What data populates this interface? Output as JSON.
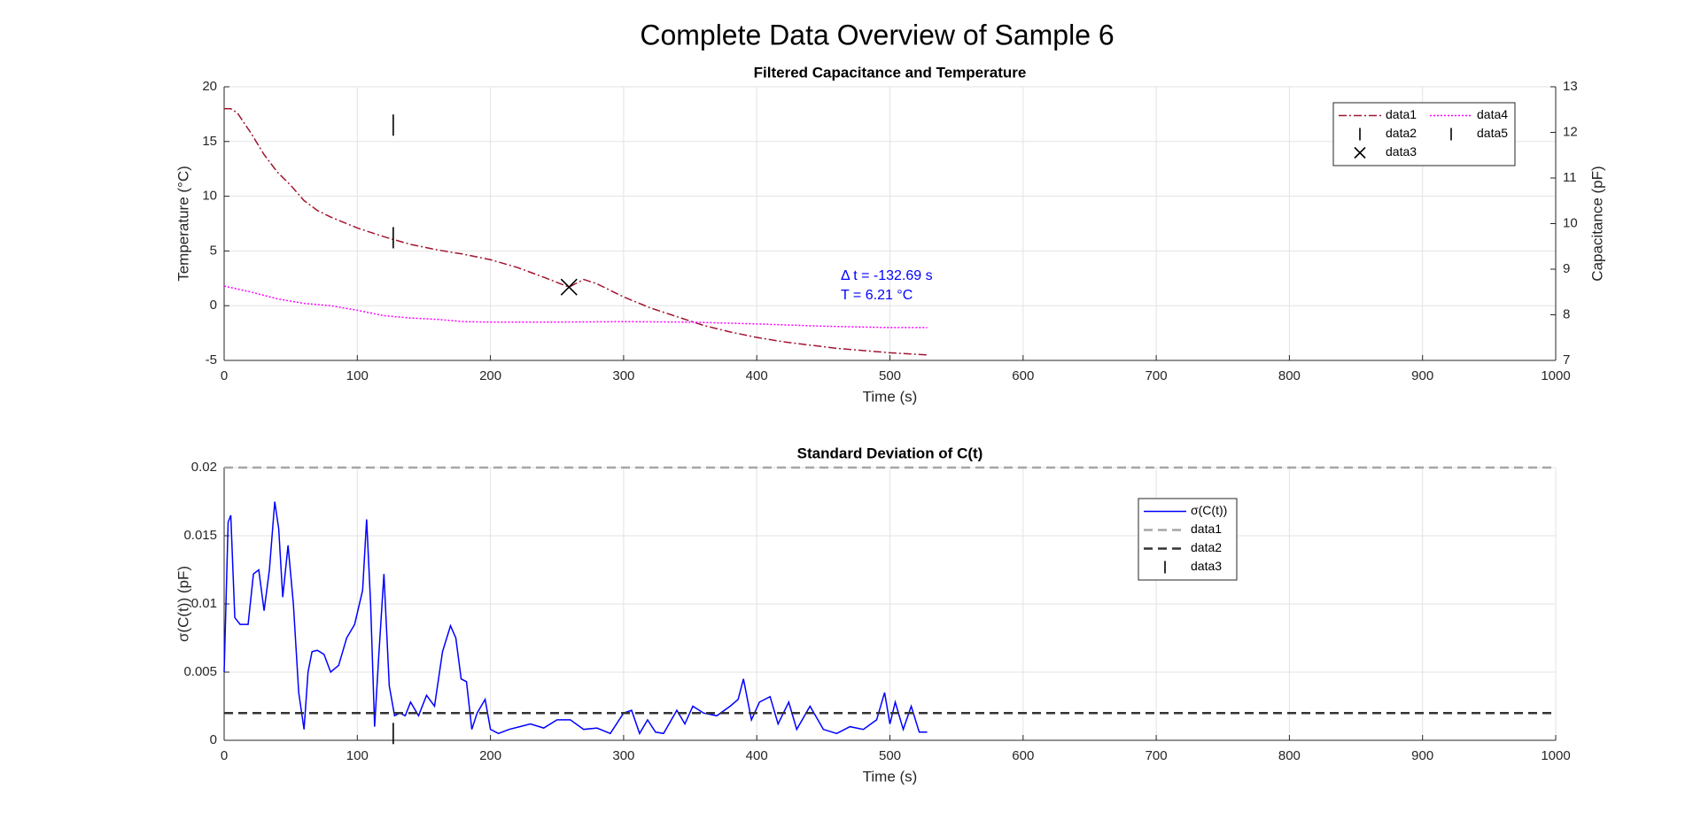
{
  "title": "Complete Data Overview of Sample 6",
  "chart_data": [
    {
      "type": "line",
      "title": "Filtered Capacitance and Temperature",
      "xlabel": "Time (s)",
      "ylabel": "Temperature (°C)",
      "y2label": "Capacitance (pF)",
      "xlim": [
        0,
        1000
      ],
      "xticks": [
        0,
        100,
        200,
        300,
        400,
        500,
        600,
        700,
        800,
        900,
        1000
      ],
      "ylim": [
        -5,
        20
      ],
      "yticks": [
        -5,
        0,
        5,
        10,
        15,
        20
      ],
      "y2lim": [
        7,
        13
      ],
      "y2ticks": [
        7,
        8,
        9,
        10,
        11,
        12,
        13
      ],
      "grid": true,
      "legend": "northeast",
      "annotations": [
        "Δ t = -132.69 s",
        "T = 6.21 °C"
      ],
      "annotation_color": "#0000ff",
      "series": [
        {
          "name": "data1",
          "color": "#a2142f",
          "style": "dashdot",
          "x": [
            0,
            5,
            10,
            20,
            30,
            40,
            50,
            60,
            70,
            80,
            100,
            120,
            140,
            160,
            180,
            200,
            220,
            240,
            259,
            270,
            280,
            300,
            320,
            340,
            360,
            380,
            400,
            420,
            440,
            460,
            480,
            500,
            528
          ],
          "values": [
            18,
            18,
            17.6,
            15.8,
            13.8,
            12.2,
            11,
            9.6,
            8.7,
            8.1,
            7.1,
            6.3,
            5.6,
            5.1,
            4.7,
            4.2,
            3.5,
            2.6,
            1.7,
            2.4,
            2.0,
            0.8,
            -0.2,
            -1.0,
            -1.8,
            -2.4,
            -2.9,
            -3.3,
            -3.6,
            -3.9,
            -4.1,
            -4.3,
            -4.5
          ]
        },
        {
          "name": "data2",
          "color": "#000000",
          "style": "none",
          "marker": "|",
          "x": [
            127
          ],
          "values": [
            6.21
          ]
        },
        {
          "name": "data3",
          "color": "#000000",
          "style": "none",
          "marker": "x",
          "x": [
            259
          ],
          "values": [
            1.7
          ]
        },
        {
          "name": "data4",
          "color": "#ff00ff",
          "style": "dotted",
          "axis": "y2",
          "x": [
            0,
            20,
            40,
            60,
            80,
            100,
            120,
            140,
            160,
            180,
            200,
            250,
            300,
            350,
            400,
            450,
            500,
            528
          ],
          "values": [
            8.63,
            8.5,
            8.35,
            8.25,
            8.2,
            8.1,
            7.98,
            7.93,
            7.9,
            7.85,
            7.84,
            7.84,
            7.85,
            7.84,
            7.8,
            7.75,
            7.72,
            7.72
          ]
        },
        {
          "name": "data5",
          "color": "#000000",
          "style": "none",
          "marker": "|",
          "x": [
            127
          ],
          "values": [
            16.5
          ]
        }
      ]
    },
    {
      "type": "line",
      "title": "Standard Deviation of C(t)",
      "xlabel": "Time (s)",
      "ylabel": "σ(C(t)) (pF)",
      "xlim": [
        0,
        1000
      ],
      "xticks": [
        0,
        100,
        200,
        300,
        400,
        500,
        600,
        700,
        800,
        900,
        1000
      ],
      "ylim": [
        0,
        0.02
      ],
      "yticks": [
        0,
        0.005,
        0.01,
        0.015,
        0.02
      ],
      "grid": true,
      "legend": "north",
      "series": [
        {
          "name": "σ(C(t))",
          "color": "#0000ff",
          "style": "solid",
          "x": [
            0,
            3,
            5,
            8,
            12,
            18,
            22,
            26,
            30,
            34,
            38,
            41,
            44,
            48,
            52,
            56,
            60,
            63,
            66,
            70,
            75,
            80,
            86,
            92,
            98,
            104,
            107,
            110,
            113,
            116,
            120,
            124,
            128,
            132,
            136,
            140,
            146,
            152,
            158,
            164,
            170,
            174,
            178,
            182,
            186,
            190,
            196,
            200,
            206,
            214,
            222,
            230,
            240,
            250,
            260,
            270,
            280,
            290,
            300,
            306,
            312,
            318,
            324,
            330,
            340,
            346,
            352,
            360,
            370,
            380,
            386,
            390,
            396,
            402,
            410,
            416,
            424,
            430,
            440,
            450,
            460,
            470,
            480,
            490,
            496,
            500,
            504,
            510,
            516,
            522,
            528
          ],
          "values": [
            0.005,
            0.016,
            0.0165,
            0.009,
            0.0085,
            0.0085,
            0.0122,
            0.0125,
            0.0095,
            0.0125,
            0.0175,
            0.0155,
            0.0105,
            0.0143,
            0.01,
            0.0035,
            0.0008,
            0.005,
            0.0065,
            0.0066,
            0.0063,
            0.005,
            0.0055,
            0.0075,
            0.0085,
            0.011,
            0.0162,
            0.01,
            0.001,
            0.006,
            0.0122,
            0.004,
            0.0018,
            0.002,
            0.0018,
            0.0028,
            0.0018,
            0.0033,
            0.0025,
            0.0065,
            0.0084,
            0.0075,
            0.0045,
            0.0043,
            0.0008,
            0.002,
            0.003,
            0.0008,
            0.0005,
            0.0008,
            0.001,
            0.0012,
            0.0009,
            0.0015,
            0.0015,
            0.0008,
            0.0009,
            0.0005,
            0.002,
            0.0022,
            0.0005,
            0.0015,
            0.0006,
            0.0005,
            0.0022,
            0.0012,
            0.0025,
            0.002,
            0.0018,
            0.0025,
            0.003,
            0.0045,
            0.0015,
            0.0028,
            0.0032,
            0.0012,
            0.0028,
            0.0008,
            0.0025,
            0.0008,
            0.0005,
            0.001,
            0.0008,
            0.0015,
            0.0035,
            0.0012,
            0.0028,
            0.0008,
            0.0025,
            0.0006,
            0.0006
          ]
        },
        {
          "name": "data1",
          "color": "#a6a6a6",
          "style": "dashed",
          "x": [
            0,
            1000
          ],
          "values": [
            0.02,
            0.02
          ]
        },
        {
          "name": "data2",
          "color": "#333333",
          "style": "dashed",
          "x": [
            0,
            1000
          ],
          "values": [
            0.002,
            0.002
          ]
        },
        {
          "name": "data3",
          "color": "#000000",
          "style": "none",
          "marker": "|",
          "x": [
            127
          ],
          "values": [
            0.0005
          ]
        }
      ]
    }
  ]
}
